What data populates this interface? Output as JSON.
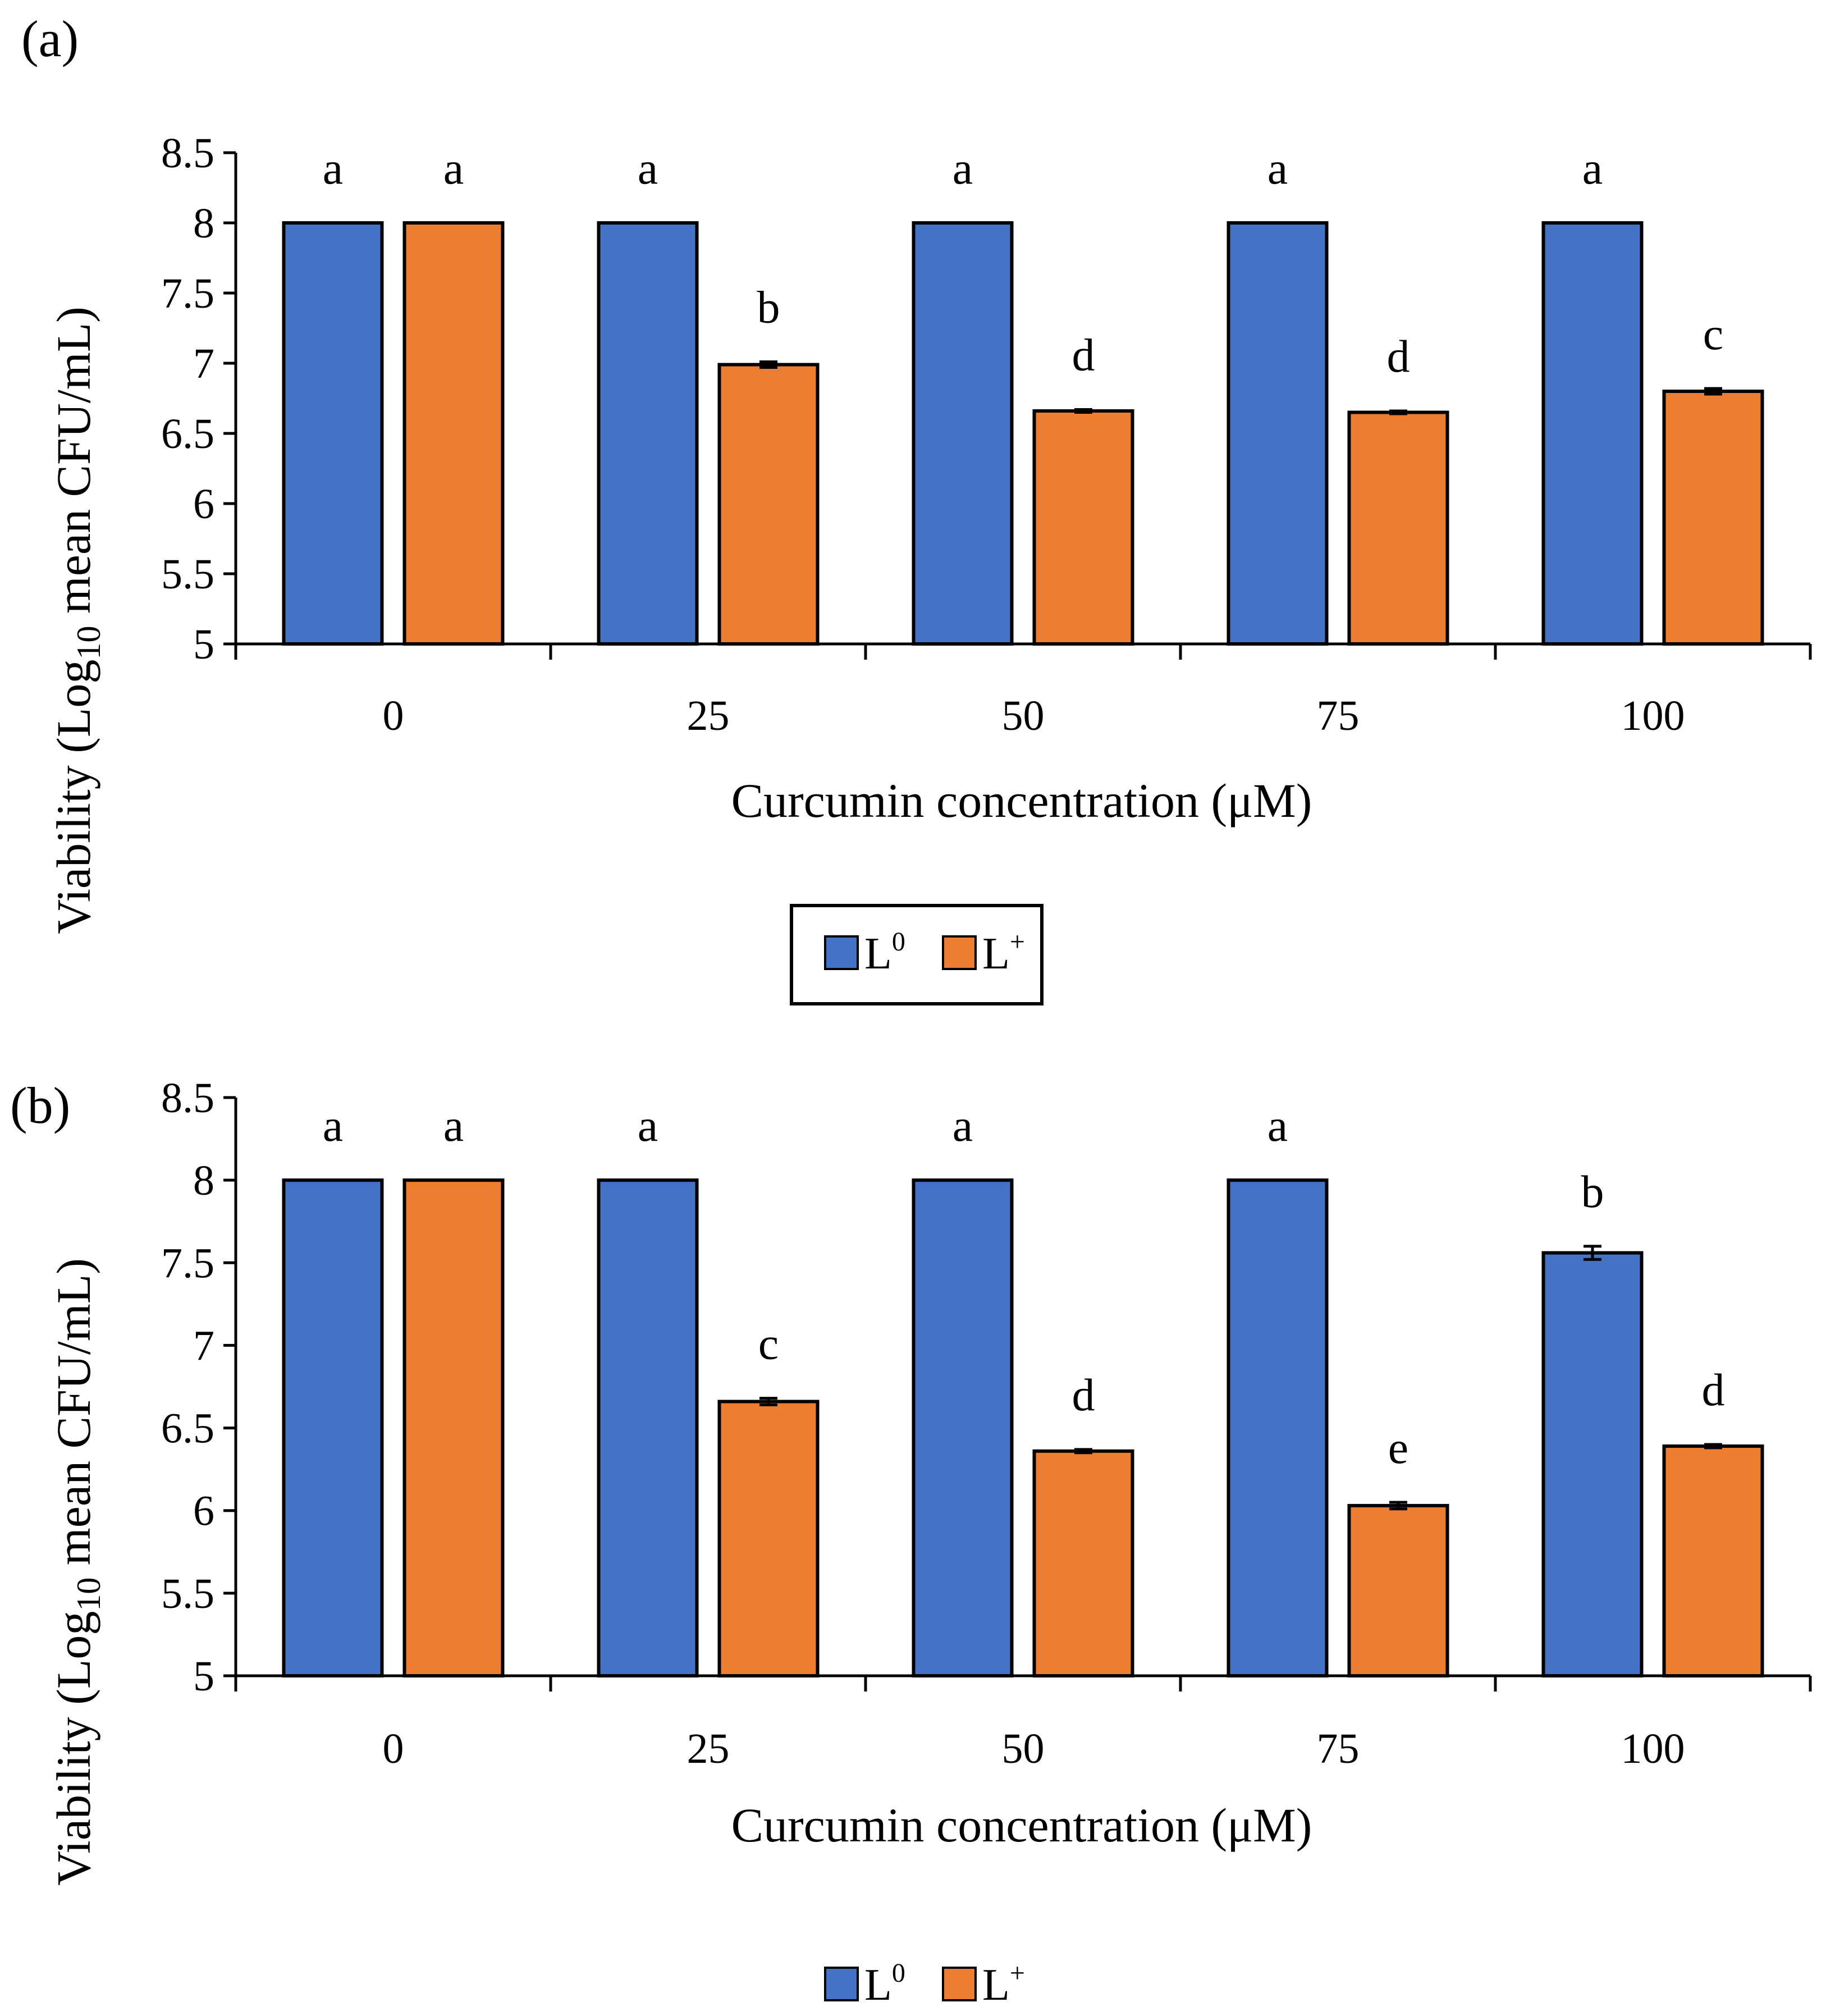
{
  "colors": {
    "L0": "#4472C4",
    "Lplus": "#ED7D31",
    "outline": "#000000"
  },
  "legend": [
    {
      "key": "L0",
      "base": "L",
      "sup": "0"
    },
    {
      "key": "Lplus",
      "base": "L",
      "sup": "+"
    }
  ],
  "chart_data": [
    {
      "type": "bar",
      "panel_label": "(a)",
      "categories": [
        "0",
        "25",
        "50",
        "75",
        "100"
      ],
      "xlabel": "Curcumin concentration (μM)",
      "ylabel": "Viability (Log10 mean CFU/mL)",
      "ylabel_parts": {
        "before": "Viability (Log",
        "sub": "10",
        "after": " mean CFU/mL)"
      },
      "ylim": [
        5,
        8.5
      ],
      "yticks": [
        "5",
        "5.5",
        "6",
        "6.5",
        "7",
        "7.5",
        "8",
        "8.5"
      ],
      "legend_boxed": true,
      "series": [
        {
          "name": "L0",
          "color_key": "L0",
          "values": [
            8,
            8,
            8,
            8,
            8
          ],
          "errors": [
            0,
            0,
            0,
            0,
            0
          ],
          "labels": [
            "a",
            "a",
            "a",
            "a",
            "a"
          ]
        },
        {
          "name": "L+",
          "color_key": "Lplus",
          "values": [
            8,
            6.99,
            6.66,
            6.65,
            6.8
          ],
          "errors": [
            0,
            0.02,
            0.01,
            0.01,
            0.02
          ],
          "labels": [
            "a",
            "b",
            "d",
            "d",
            "c"
          ]
        }
      ]
    },
    {
      "type": "bar",
      "panel_label": "(b)",
      "categories": [
        "0",
        "25",
        "50",
        "75",
        "100"
      ],
      "xlabel": "Curcumin concentration (μM)",
      "ylabel": "Viability (Log10 mean CFU/mL)",
      "ylabel_parts": {
        "before": "Viability (Log",
        "sub": "10",
        "after": " mean CFU/mL)"
      },
      "ylim": [
        5,
        8.5
      ],
      "yticks": [
        "5",
        "5.5",
        "6",
        "6.5",
        "7",
        "7.5",
        "8",
        "8.5"
      ],
      "legend_boxed": false,
      "series": [
        {
          "name": "L0",
          "color_key": "L0",
          "values": [
            8,
            8,
            8,
            8,
            7.56
          ],
          "errors": [
            0,
            0,
            0,
            0,
            0.04
          ],
          "labels": [
            "a",
            "a",
            "a",
            "a",
            "b"
          ]
        },
        {
          "name": "L+",
          "color_key": "Lplus",
          "values": [
            8,
            6.66,
            6.36,
            6.03,
            6.39
          ],
          "errors": [
            0,
            0.02,
            0.01,
            0.02,
            0.01
          ],
          "labels": [
            "a",
            "c",
            "d",
            "e",
            "d"
          ]
        }
      ]
    }
  ]
}
